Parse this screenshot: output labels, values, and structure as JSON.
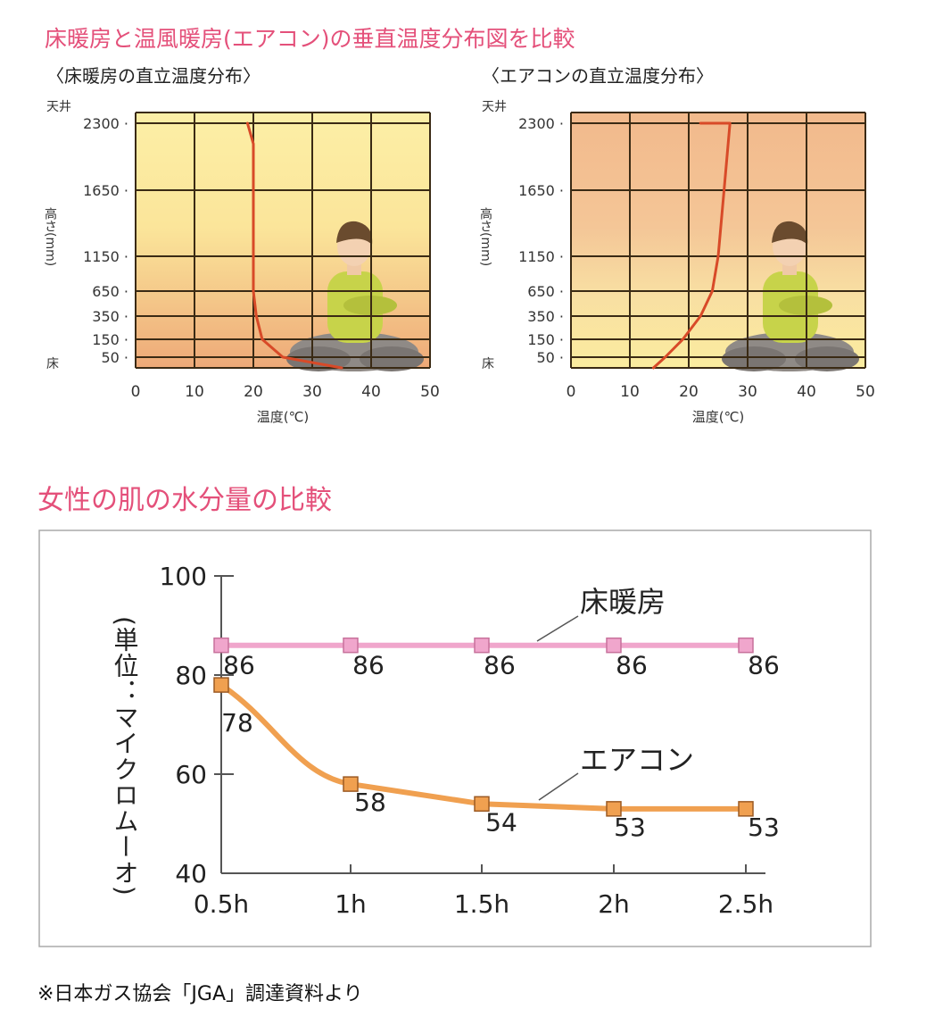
{
  "heading_temp": "床暖房と温風暖房(エアコン)の垂直温度分布図を比較",
  "heading_skin": "女性の肌の水分量の比較",
  "footnote": "※日本ガス協会「JGA」調達資料より",
  "colors": {
    "heading": "#e4507a",
    "floor_series": "#f0a6cc",
    "aircon_series": "#f0a050",
    "temp_line": "#d84a28",
    "grid": "#3a2a14"
  },
  "chart_data": [
    {
      "type": "line",
      "title": "〈床暖房の直立温度分布〉",
      "xlabel": "温度(℃)",
      "ylabel": "高さ(mm)",
      "top_label": "天井",
      "bottom_label": "床",
      "xlim": [
        0,
        50
      ],
      "x_ticks": [
        0,
        10,
        20,
        30,
        40,
        50
      ],
      "y_ticks": [
        2300,
        1650,
        1150,
        650,
        350,
        150,
        50
      ],
      "y_scale": "non-linear (ticks spaced as printed)",
      "background": "yellow above, warm orange near floor",
      "series": [
        {
          "x": [
            19,
            20,
            20,
            20.5,
            21.5,
            25,
            35
          ],
          "y": [
            2300,
            2100,
            650,
            350,
            150,
            50,
            0
          ]
        }
      ]
    },
    {
      "type": "line",
      "title": "〈エアコンの直立温度分布〉",
      "xlabel": "温度(℃)",
      "ylabel": "高さ(mm)",
      "top_label": "天井",
      "bottom_label": "床",
      "xlim": [
        0,
        50
      ],
      "x_ticks": [
        0,
        10,
        20,
        30,
        40,
        50
      ],
      "y_ticks": [
        2300,
        1650,
        1150,
        650,
        350,
        150,
        50
      ],
      "y_scale": "non-linear (ticks spaced as printed)",
      "background": "warm orange above, yellow near floor",
      "series": [
        {
          "x": [
            22,
            27,
            26,
            25,
            24,
            22,
            19,
            16,
            14
          ],
          "y": [
            2300,
            2300,
            1650,
            1150,
            650,
            350,
            150,
            50,
            0
          ]
        }
      ]
    },
    {
      "type": "line",
      "title": "女性の肌の水分量の比較",
      "ylabel": "(単位：マイクロムーオ)",
      "categories": [
        "0.5h",
        "1h",
        "1.5h",
        "2h",
        "2.5h"
      ],
      "ylim": [
        40,
        100
      ],
      "y_ticks": [
        40,
        60,
        80,
        100
      ],
      "series": [
        {
          "name": "床暖房",
          "values": [
            86,
            86,
            86,
            86,
            86
          ]
        },
        {
          "name": "エアコン",
          "values": [
            78,
            58,
            54,
            53,
            53
          ]
        }
      ]
    }
  ]
}
